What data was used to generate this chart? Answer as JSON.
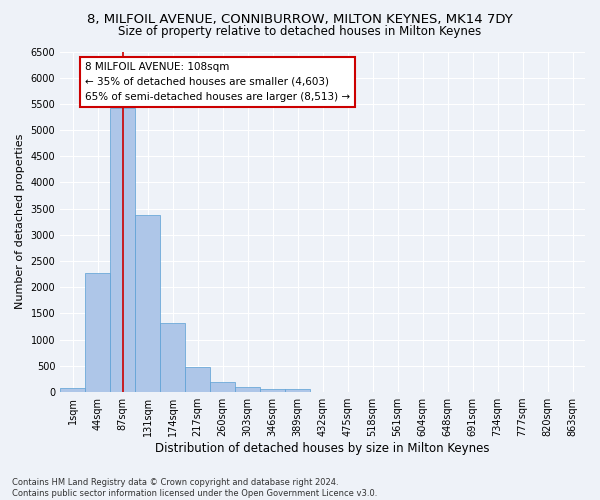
{
  "title1": "8, MILFOIL AVENUE, CONNIBURROW, MILTON KEYNES, MK14 7DY",
  "title2": "Size of property relative to detached houses in Milton Keynes",
  "xlabel": "Distribution of detached houses by size in Milton Keynes",
  "ylabel": "Number of detached properties",
  "categories": [
    "1sqm",
    "44sqm",
    "87sqm",
    "131sqm",
    "174sqm",
    "217sqm",
    "260sqm",
    "303sqm",
    "346sqm",
    "389sqm",
    "432sqm",
    "475sqm",
    "518sqm",
    "561sqm",
    "604sqm",
    "648sqm",
    "691sqm",
    "734sqm",
    "777sqm",
    "820sqm",
    "863sqm"
  ],
  "values": [
    75,
    2280,
    5430,
    3380,
    1310,
    480,
    190,
    95,
    60,
    55,
    10,
    10,
    5,
    5,
    2,
    2,
    2,
    2,
    2,
    2,
    2
  ],
  "bar_color": "#aec6e8",
  "bar_edge_color": "#5a9fd4",
  "vline_x": 2,
  "vline_color": "#cc0000",
  "annotation_text": "8 MILFOIL AVENUE: 108sqm\n← 35% of detached houses are smaller (4,603)\n65% of semi-detached houses are larger (8,513) →",
  "annotation_box_color": "#cc0000",
  "ylim": [
    0,
    6500
  ],
  "yticks": [
    0,
    500,
    1000,
    1500,
    2000,
    2500,
    3000,
    3500,
    4000,
    4500,
    5000,
    5500,
    6000,
    6500
  ],
  "footnote": "Contains HM Land Registry data © Crown copyright and database right 2024.\nContains public sector information licensed under the Open Government Licence v3.0.",
  "bg_color": "#eef2f8",
  "grid_color": "#ffffff",
  "title_fontsize": 9.5,
  "subtitle_fontsize": 8.5,
  "tick_fontsize": 7,
  "ylabel_fontsize": 8,
  "xlabel_fontsize": 8.5,
  "footnote_fontsize": 6,
  "annotation_fontsize": 7.5
}
